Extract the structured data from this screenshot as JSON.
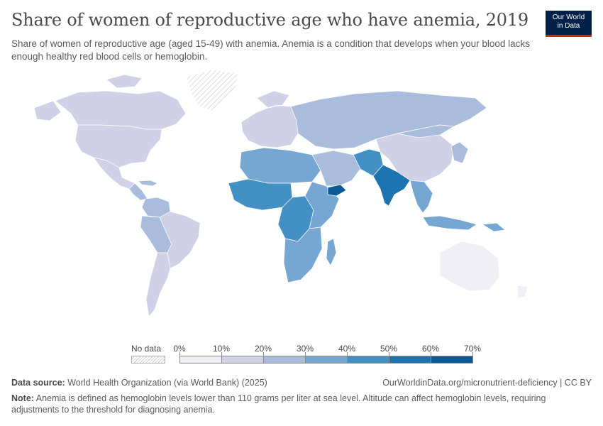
{
  "header": {
    "title": "Share of women of reproductive age who have anemia, 2019",
    "subtitle": "Share of women of reproductive age (aged 15-49) with anemia. Anemia is a condition that develops when your blood lacks enough healthy red blood cells or hemoglobin.",
    "logo_line1": "Our World",
    "logo_line2": "in Data"
  },
  "legend": {
    "no_data_label": "No data",
    "ticks": [
      "0%",
      "10%",
      "20%",
      "30%",
      "40%",
      "50%",
      "60%",
      "70%"
    ],
    "bin_colors": [
      "#f0eff6",
      "#d0d0e6",
      "#a9bcdc",
      "#76a7d2",
      "#4390c4",
      "#1d74b1",
      "#0b5a94"
    ],
    "no_data_color": "hatched"
  },
  "map": {
    "regions": [
      {
        "name": "Canada",
        "bin": 1
      },
      {
        "name": "United States",
        "bin": 1
      },
      {
        "name": "Greenland",
        "bin": -1
      },
      {
        "name": "Mexico",
        "bin": 1
      },
      {
        "name": "Central America",
        "bin": 2
      },
      {
        "name": "Caribbean",
        "bin": 2
      },
      {
        "name": "Colombia/Venezuela",
        "bin": 2
      },
      {
        "name": "Peru/Bolivia",
        "bin": 2
      },
      {
        "name": "Brazil",
        "bin": 1
      },
      {
        "name": "Southern Cone",
        "bin": 1
      },
      {
        "name": "Europe",
        "bin": 1
      },
      {
        "name": "Russia/Central Asia",
        "bin": 2
      },
      {
        "name": "China",
        "bin": 1
      },
      {
        "name": "Mongolia",
        "bin": 2
      },
      {
        "name": "North Africa",
        "bin": 3
      },
      {
        "name": "West Africa",
        "bin": 4
      },
      {
        "name": "Central Africa",
        "bin": 4
      },
      {
        "name": "East Africa",
        "bin": 3
      },
      {
        "name": "Southern Africa",
        "bin": 3
      },
      {
        "name": "Madagascar",
        "bin": 3
      },
      {
        "name": "Middle East",
        "bin": 2
      },
      {
        "name": "Yemen",
        "bin": 6
      },
      {
        "name": "Afghanistan/Pakistan",
        "bin": 4
      },
      {
        "name": "India",
        "bin": 5
      },
      {
        "name": "Southeast Asia",
        "bin": 3
      },
      {
        "name": "Indonesia",
        "bin": 3
      },
      {
        "name": "Papua New Guinea",
        "bin": 3
      },
      {
        "name": "Japan/Korea",
        "bin": 2
      },
      {
        "name": "Australia",
        "bin": 0
      },
      {
        "name": "New Zealand",
        "bin": 0
      }
    ]
  },
  "footer": {
    "source_label": "Data source:",
    "source_text": " World Health Organization (via World Bank) (2025)",
    "url": "OurWorldinData.org/micronutrient-deficiency | CC BY",
    "note_label": "Note:",
    "note_text": " Anemia is defined as hemoglobin levels lower than 110 grams per liter at sea level. Altitude can affect hemoglobin levels, requiring adjustments to the threshold for diagnosing anemia."
  }
}
